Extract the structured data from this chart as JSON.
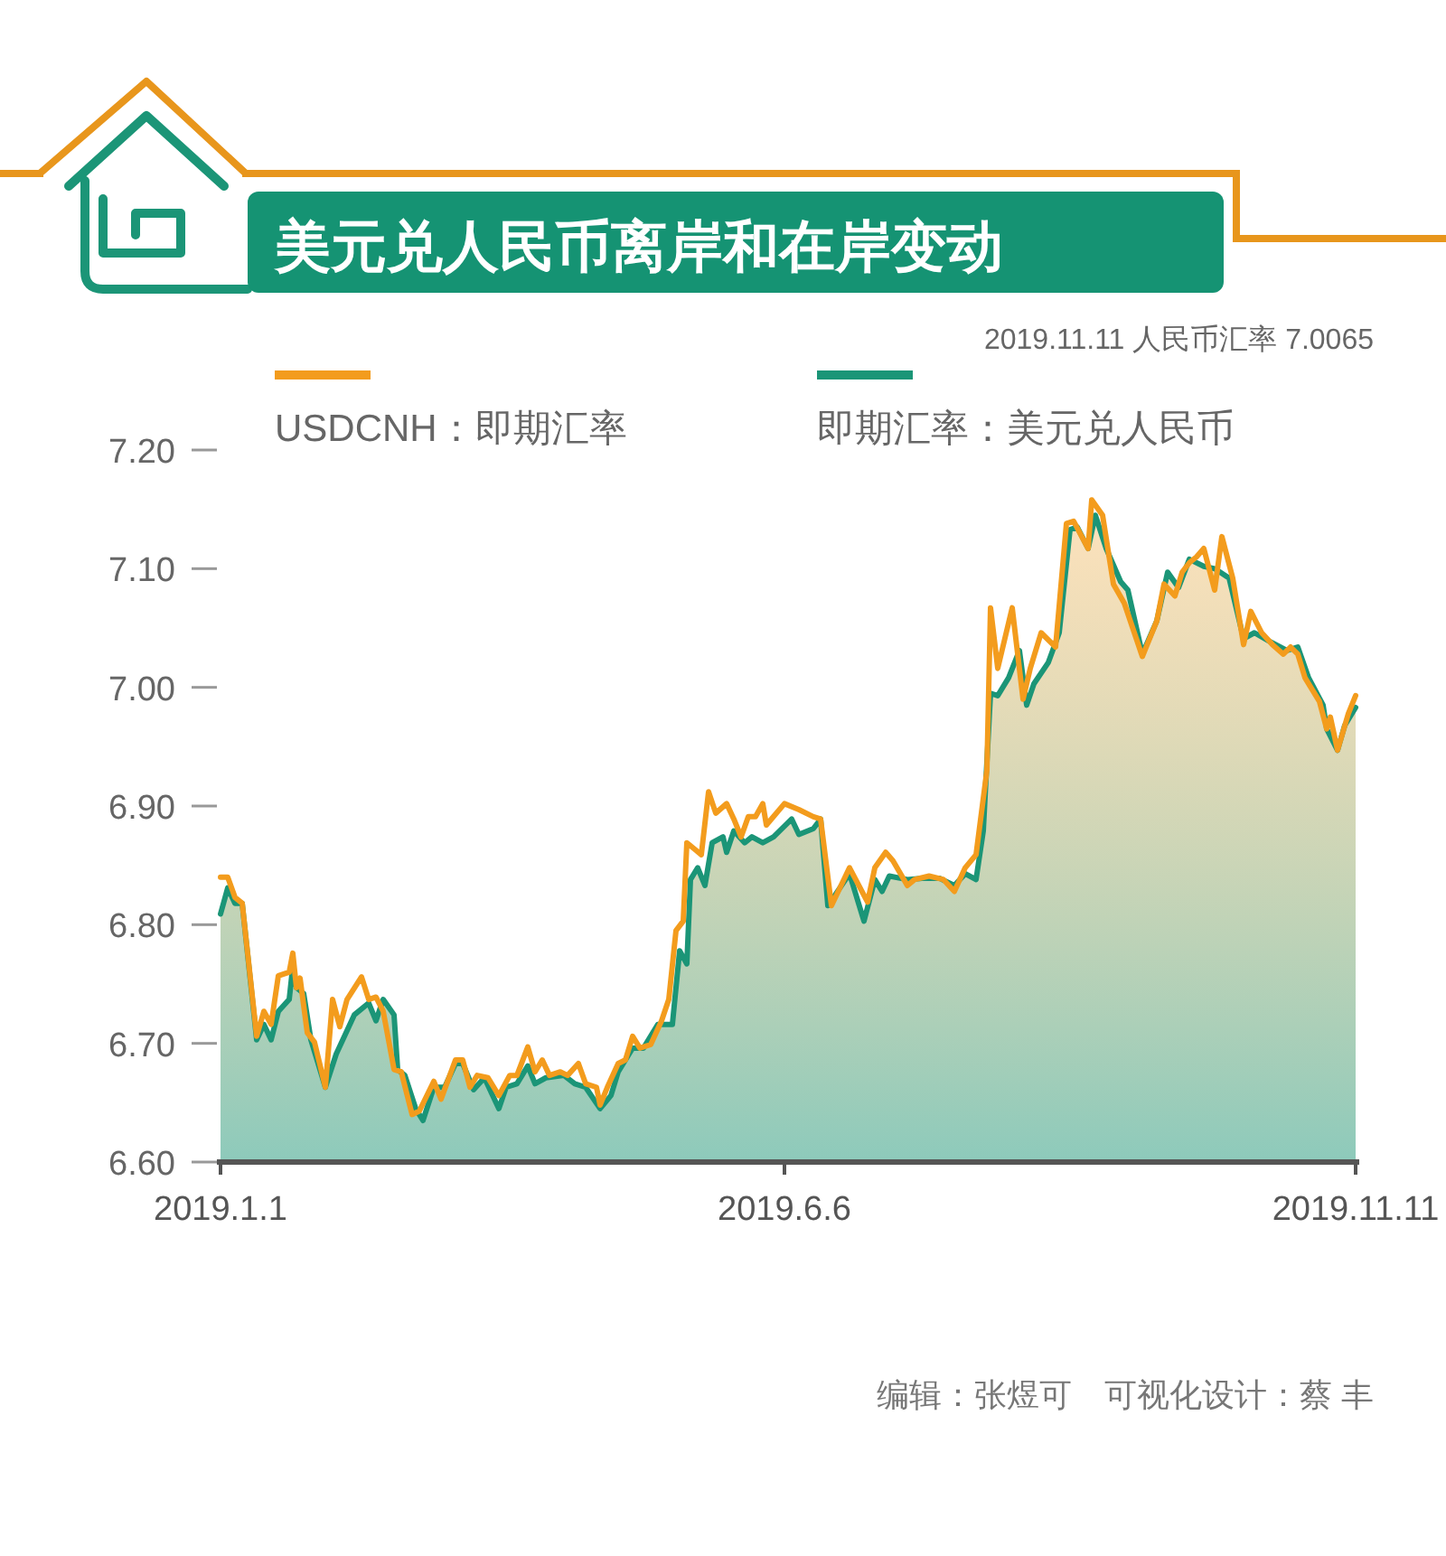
{
  "chart_data": {
    "type": "line",
    "title": "美元兑人民币离岸和在岸变动",
    "annotations": [
      "2019.11.11 人民币汇率 7.0065",
      "编辑：张煜可　可视化设计：蔡 丰"
    ],
    "legend": "top",
    "xlim": [
      "2019-01-01",
      "2019-11-11"
    ],
    "xticks": [
      {
        "value": "2019-01-01",
        "label": "2019.1.1"
      },
      {
        "value": "2019-06-06",
        "label": "2019.6.6"
      },
      {
        "value": "2019-11-11",
        "label": "2019.11.11"
      }
    ],
    "ylim": [
      6.6,
      7.2
    ],
    "yticks": [
      {
        "value": 6.6,
        "label": "6.60"
      },
      {
        "value": 6.7,
        "label": "6.70"
      },
      {
        "value": 6.8,
        "label": "6.80"
      },
      {
        "value": 6.9,
        "label": "6.90"
      },
      {
        "value": 7.0,
        "label": "7.00"
      },
      {
        "value": 7.1,
        "label": "7.10"
      },
      {
        "value": 7.2,
        "label": "7.20"
      }
    ],
    "series": [
      {
        "name": "USDCNH：即期汇率",
        "type": "line",
        "color": "#f39c1d",
        "x": [
          "2019-01-01",
          "2019-01-03",
          "2019-01-05",
          "2019-01-07",
          "2019-01-11",
          "2019-01-13",
          "2019-01-15",
          "2019-01-17",
          "2019-01-20",
          "2019-01-21",
          "2019-01-22",
          "2019-01-23",
          "2019-01-25",
          "2019-01-27",
          "2019-01-30",
          "2019-02-01",
          "2019-02-03",
          "2019-02-05",
          "2019-02-09",
          "2019-02-11",
          "2019-02-13",
          "2019-02-15",
          "2019-02-18",
          "2019-02-20",
          "2019-02-23",
          "2019-02-25",
          "2019-03-01",
          "2019-03-03",
          "2019-03-07",
          "2019-03-09",
          "2019-03-11",
          "2019-03-13",
          "2019-03-16",
          "2019-03-19",
          "2019-03-22",
          "2019-03-24",
          "2019-03-27",
          "2019-03-29",
          "2019-03-31",
          "2019-04-02",
          "2019-04-05",
          "2019-04-07",
          "2019-04-10",
          "2019-04-12",
          "2019-04-15",
          "2019-04-16",
          "2019-04-18",
          "2019-04-21",
          "2019-04-23",
          "2019-04-25",
          "2019-04-27",
          "2019-04-30",
          "2019-05-03",
          "2019-05-05",
          "2019-05-07",
          "2019-05-09",
          "2019-05-10",
          "2019-05-12",
          "2019-05-14",
          "2019-05-16",
          "2019-05-18",
          "2019-05-21",
          "2019-05-23",
          "2019-05-25",
          "2019-05-27",
          "2019-05-29",
          "2019-05-31",
          "2019-06-01",
          "2019-06-06",
          "2019-06-10",
          "2019-06-14",
          "2019-06-16",
          "2019-06-19",
          "2019-06-24",
          "2019-06-29",
          "2019-07-01",
          "2019-07-04",
          "2019-07-06",
          "2019-07-10",
          "2019-07-12",
          "2019-07-16",
          "2019-07-20",
          "2019-07-23",
          "2019-07-26",
          "2019-07-29",
          "2019-08-01",
          "2019-08-02",
          "2019-08-04",
          "2019-08-08",
          "2019-08-11",
          "2019-08-13",
          "2019-08-16",
          "2019-08-20",
          "2019-08-23",
          "2019-08-25",
          "2019-08-29",
          "2019-08-30",
          "2019-09-02",
          "2019-09-05",
          "2019-09-08",
          "2019-09-13",
          "2019-09-17",
          "2019-09-19",
          "2019-09-22",
          "2019-09-24",
          "2019-09-26",
          "2019-09-28",
          "2019-09-30",
          "2019-10-03",
          "2019-10-05",
          "2019-10-08",
          "2019-10-11",
          "2019-10-13",
          "2019-10-16",
          "2019-10-19",
          "2019-10-22",
          "2019-10-24",
          "2019-10-26",
          "2019-10-28",
          "2019-11-01",
          "2019-11-03",
          "2019-11-04",
          "2019-11-06",
          "2019-11-09",
          "2019-11-11"
        ],
        "values": [
          6.84,
          6.84,
          6.823,
          6.818,
          6.706,
          6.727,
          6.716,
          6.757,
          6.76,
          6.776,
          6.747,
          6.755,
          6.709,
          6.701,
          6.663,
          6.737,
          6.714,
          6.737,
          6.756,
          6.737,
          6.739,
          6.727,
          6.678,
          6.676,
          6.64,
          6.643,
          6.668,
          6.653,
          6.686,
          6.686,
          6.663,
          6.673,
          6.671,
          6.656,
          6.673,
          6.673,
          6.697,
          6.676,
          6.686,
          6.673,
          6.676,
          6.673,
          6.683,
          6.666,
          6.663,
          6.648,
          6.663,
          6.683,
          6.686,
          6.706,
          6.696,
          6.699,
          6.719,
          6.737,
          6.795,
          6.803,
          6.869,
          6.864,
          6.859,
          6.912,
          6.894,
          6.902,
          6.889,
          6.874,
          6.891,
          6.891,
          6.902,
          6.884,
          6.902,
          6.897,
          6.891,
          6.889,
          6.816,
          6.848,
          6.819,
          6.848,
          6.861,
          6.854,
          6.833,
          6.838,
          6.841,
          6.838,
          6.828,
          6.848,
          6.859,
          6.93,
          7.067,
          7.016,
          7.067,
          6.99,
          7.016,
          7.046,
          7.034,
          7.138,
          7.14,
          7.117,
          7.158,
          7.145,
          7.087,
          7.071,
          7.026,
          7.056,
          7.087,
          7.077,
          7.097,
          7.105,
          7.11,
          7.117,
          7.082,
          7.127,
          7.092,
          7.036,
          7.064,
          7.046,
          7.036,
          7.028,
          7.034,
          7.028,
          7.008,
          6.988,
          6.965,
          6.975,
          6.947,
          6.978,
          6.993
        ]
      },
      {
        "name": "即期汇率：美元兑人民币",
        "type": "area",
        "color": "#1b9577",
        "x": [
          "2019-01-01",
          "2019-01-03",
          "2019-01-05",
          "2019-01-07",
          "2019-01-11",
          "2019-01-13",
          "2019-01-15",
          "2019-01-17",
          "2019-01-20",
          "2019-01-21",
          "2019-01-22",
          "2019-01-24",
          "2019-01-26",
          "2019-01-30",
          "2019-02-02",
          "2019-02-07",
          "2019-02-11",
          "2019-02-13",
          "2019-02-15",
          "2019-02-18",
          "2019-02-19",
          "2019-02-21",
          "2019-02-24",
          "2019-02-26",
          "2019-03-01",
          "2019-03-04",
          "2019-03-07",
          "2019-03-09",
          "2019-03-12",
          "2019-03-15",
          "2019-03-19",
          "2019-03-21",
          "2019-03-24",
          "2019-03-27",
          "2019-03-29",
          "2019-04-01",
          "2019-04-06",
          "2019-04-09",
          "2019-04-12",
          "2019-04-16",
          "2019-04-19",
          "2019-04-21",
          "2019-04-25",
          "2019-04-28",
          "2019-05-02",
          "2019-05-06",
          "2019-05-08",
          "2019-05-10",
          "2019-05-11",
          "2019-05-13",
          "2019-05-15",
          "2019-05-17",
          "2019-05-20",
          "2019-05-21",
          "2019-05-23",
          "2019-05-26",
          "2019-05-28",
          "2019-05-31",
          "2019-06-03",
          "2019-06-08",
          "2019-06-10",
          "2019-06-14",
          "2019-06-16",
          "2019-06-18",
          "2019-06-24",
          "2019-06-28",
          "2019-07-01",
          "2019-07-03",
          "2019-07-05",
          "2019-07-10",
          "2019-07-14",
          "2019-07-19",
          "2019-07-23",
          "2019-07-26",
          "2019-07-29",
          "2019-07-31",
          "2019-08-02",
          "2019-08-04",
          "2019-08-07",
          "2019-08-10",
          "2019-08-12",
          "2019-08-14",
          "2019-08-18",
          "2019-08-21",
          "2019-08-24",
          "2019-08-26",
          "2019-08-29",
          "2019-08-31",
          "2019-09-03",
          "2019-09-07",
          "2019-09-09",
          "2019-09-13",
          "2019-09-17",
          "2019-09-20",
          "2019-09-23",
          "2019-09-26",
          "2019-09-30",
          "2019-10-03",
          "2019-10-07",
          "2019-10-11",
          "2019-10-14",
          "2019-10-18",
          "2019-10-23",
          "2019-10-26",
          "2019-10-29",
          "2019-11-02",
          "2019-11-03",
          "2019-11-06",
          "2019-11-08",
          "2019-11-11"
        ],
        "values": [
          6.809,
          6.831,
          6.818,
          6.818,
          6.703,
          6.716,
          6.703,
          6.727,
          6.737,
          6.765,
          6.747,
          6.742,
          6.703,
          6.663,
          6.691,
          6.724,
          6.734,
          6.719,
          6.737,
          6.724,
          6.678,
          6.673,
          6.645,
          6.635,
          6.663,
          6.663,
          6.683,
          6.683,
          6.661,
          6.671,
          6.645,
          6.663,
          6.666,
          6.681,
          6.666,
          6.671,
          6.673,
          6.666,
          6.663,
          6.645,
          6.656,
          6.676,
          6.696,
          6.696,
          6.716,
          6.716,
          6.778,
          6.767,
          6.838,
          6.848,
          6.833,
          6.869,
          6.874,
          6.861,
          6.879,
          6.869,
          6.874,
          6.869,
          6.874,
          6.889,
          6.876,
          6.881,
          6.889,
          6.816,
          6.843,
          6.803,
          6.838,
          6.828,
          6.841,
          6.838,
          6.839,
          6.839,
          6.833,
          6.843,
          6.838,
          6.879,
          6.995,
          6.993,
          7.008,
          7.031,
          6.985,
          7.003,
          7.021,
          7.046,
          7.133,
          7.135,
          7.117,
          7.145,
          7.117,
          7.089,
          7.082,
          7.028,
          7.056,
          7.097,
          7.084,
          7.108,
          7.102,
          7.1,
          7.092,
          7.041,
          7.046,
          7.039,
          7.031,
          7.034,
          7.008,
          6.985,
          6.965,
          6.947,
          6.968,
          6.983
        ]
      }
    ]
  }
}
